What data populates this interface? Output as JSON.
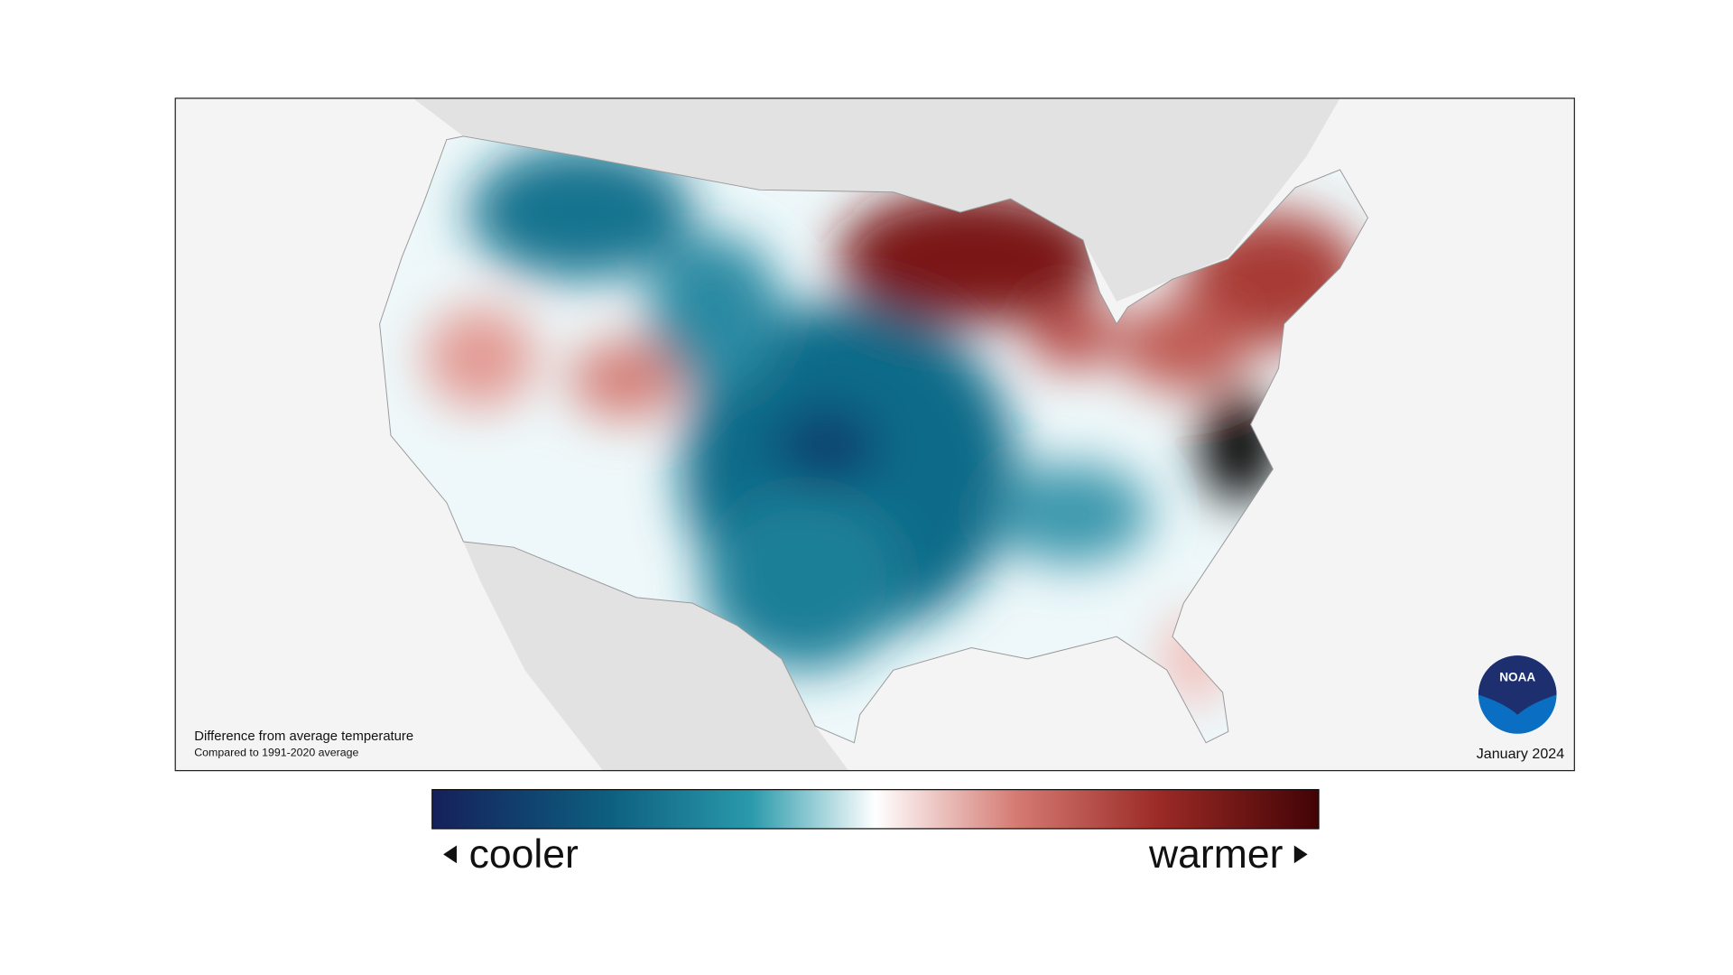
{
  "map": {
    "caption_title": "Difference from average temperature",
    "caption_subtitle": "Compared to 1991-2020 average",
    "date": "January 2024",
    "logo_text": "NOAA"
  },
  "legend": {
    "low_label": "cooler",
    "high_label": "warmer"
  }
}
